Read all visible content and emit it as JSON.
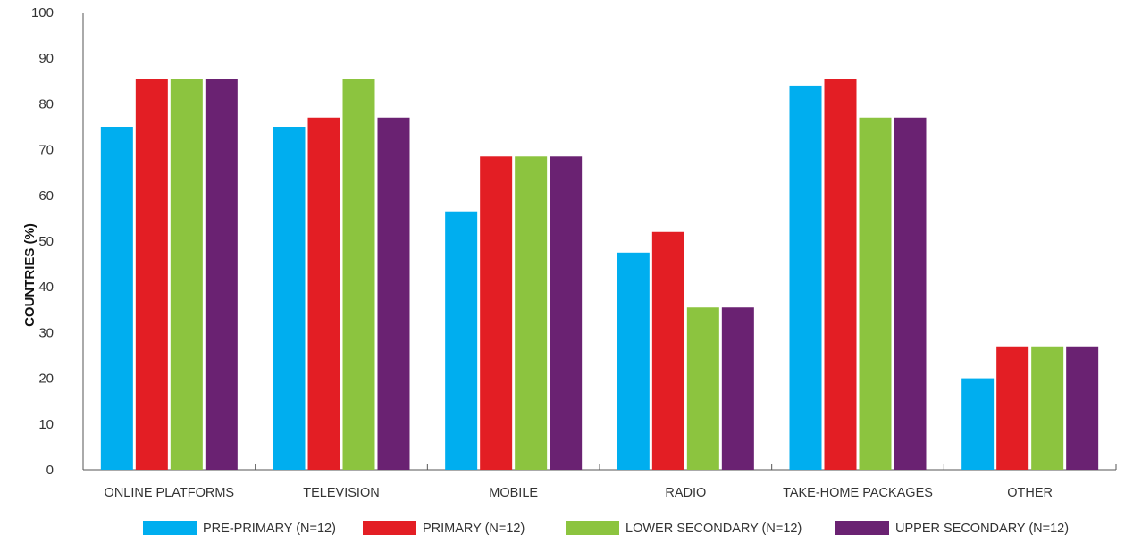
{
  "chart_data": {
    "type": "bar",
    "title": "",
    "xlabel": "",
    "ylabel": "COUNTRIES (%)",
    "ylim": [
      0,
      100
    ],
    "yticks": [
      0,
      10,
      20,
      30,
      40,
      50,
      60,
      70,
      80,
      90,
      100
    ],
    "grid": false,
    "legend_position": "bottom",
    "categories": [
      "ONLINE PLATFORMS",
      "TELEVISION",
      "MOBILE",
      "RADIO",
      "TAKE-HOME PACKAGES",
      "OTHER"
    ],
    "series": [
      {
        "name": "PRE-PRIMARY (N=12)",
        "color": "#00aeef",
        "values": [
          75,
          75,
          56.5,
          47.5,
          84,
          20
        ]
      },
      {
        "name": "PRIMARY (N=12)",
        "color": "#e31e24",
        "values": [
          85.5,
          77,
          68.5,
          52,
          85.5,
          27
        ]
      },
      {
        "name": "LOWER SECONDARY (N=12)",
        "color": "#8cc43f",
        "values": [
          85.5,
          85.5,
          68.5,
          35.5,
          77,
          27
        ]
      },
      {
        "name": "UPPER SECONDARY (N=12)",
        "color": "#6a2272",
        "values": [
          85.5,
          77,
          68.5,
          35.5,
          77,
          27
        ]
      }
    ]
  }
}
